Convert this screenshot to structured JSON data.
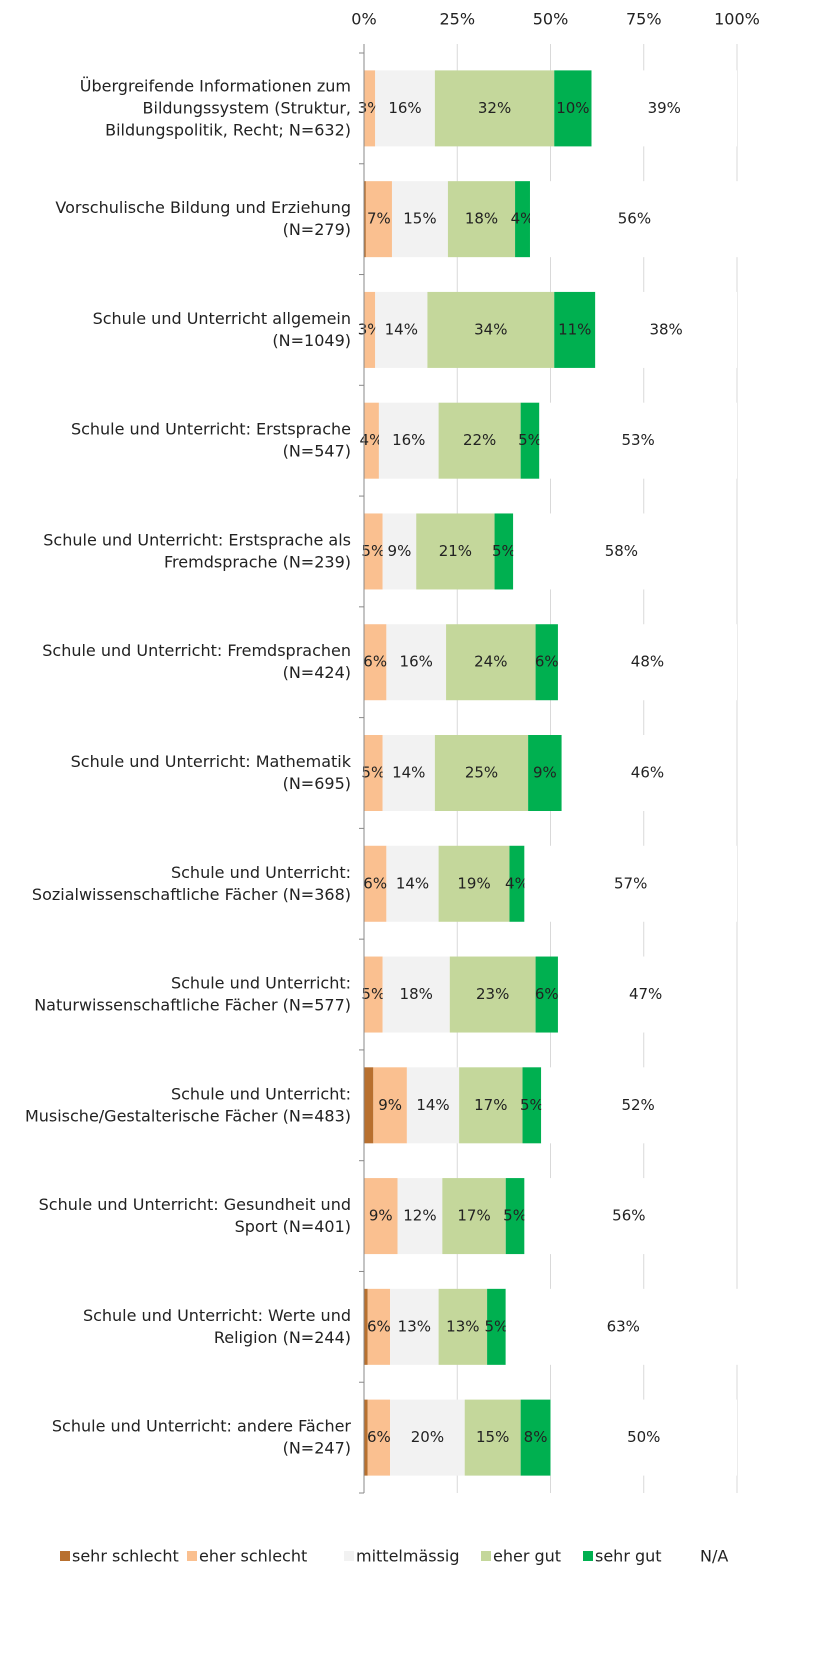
{
  "chart_data": {
    "type": "stacked-bar-horizontal",
    "categories": [
      [
        "Übergreifende Informationen zum",
        "Bildungssystem (Struktur,",
        "Bildungspolitik, Recht; N=632)"
      ],
      [
        "Vorschulische Bildung und Erziehung",
        "(N=279)"
      ],
      [
        "Schule und Unterricht allgemein",
        "(N=1049)"
      ],
      [
        "Schule und Unterricht: Erstsprache",
        "(N=547)"
      ],
      [
        "Schule und Unterricht: Erstsprache als",
        "Fremdsprache (N=239)"
      ],
      [
        "Schule und Unterricht: Fremdsprachen",
        "(N=424)"
      ],
      [
        "Schule und Unterricht: Mathematik",
        "(N=695)"
      ],
      [
        "Schule und Unterricht:",
        "Sozialwissenschaftliche Fächer (N=368)"
      ],
      [
        "Schule und Unterricht:",
        "Naturwissenschaftliche Fächer (N=577)"
      ],
      [
        "Schule und Unterricht:",
        "Musische/Gestalterische Fächer (N=483)"
      ],
      [
        "Schule und Unterricht: Gesundheit und",
        "Sport (N=401)"
      ],
      [
        "Schule und Unterricht: Werte und",
        "Religion (N=244)"
      ],
      [
        "Schule und Unterricht: andere Fächer",
        "(N=247)"
      ]
    ],
    "series": [
      {
        "name": "sehr schlecht",
        "color": "#b8702f",
        "values": [
          0,
          0.5,
          0,
          0,
          0,
          0,
          0,
          0,
          0,
          2.5,
          0,
          1,
          1
        ]
      },
      {
        "name": "eher schlecht",
        "color": "#fac090",
        "label_color": "#e8832a",
        "values": [
          3,
          7,
          3,
          4,
          5,
          6,
          5,
          6,
          5,
          9,
          9,
          6,
          6
        ],
        "value_labels": [
          "3%",
          "7%",
          "3%",
          "4%",
          "5%",
          "6%",
          "5%",
          "6%",
          "5%",
          "9%",
          "9%",
          "6%",
          "6%"
        ]
      },
      {
        "name": "mittelmässig",
        "color": "#f2f2f2",
        "label_color": "#c8c8c8",
        "values": [
          16,
          15,
          14,
          16,
          9,
          16,
          14,
          14,
          18,
          14,
          12,
          13,
          20
        ],
        "value_labels": [
          "16%",
          "15%",
          "14%",
          "16%",
          "9%",
          "16%",
          "14%",
          "14%",
          "18%",
          "14%",
          "12%",
          "13%",
          "20%"
        ]
      },
      {
        "name": "eher gut",
        "color": "#c4d79b",
        "label_color": "#86a34a",
        "values": [
          32,
          18,
          34,
          22,
          21,
          24,
          25,
          19,
          23,
          17,
          17,
          13,
          15
        ],
        "value_labels": [
          "32%",
          "18%",
          "34%",
          "22%",
          "21%",
          "24%",
          "25%",
          "19%",
          "23%",
          "17%",
          "17%",
          "13%",
          "15%"
        ]
      },
      {
        "name": "sehr gut",
        "color": "#00b050",
        "label_color": "#000000",
        "values": [
          10,
          4,
          11,
          5,
          5,
          6,
          9,
          4,
          6,
          5,
          5,
          5,
          8
        ],
        "value_labels": [
          "10%",
          "4%",
          "11%",
          "5%",
          "5%",
          "6%",
          "9%",
          "4%",
          "6%",
          "5%",
          "5%",
          "5%",
          "8%"
        ]
      },
      {
        "name": "N/A",
        "color": "#ffffff",
        "label_color": "#000000",
        "values": [
          39,
          56,
          38,
          53,
          58,
          48,
          46,
          57,
          47,
          52,
          56,
          63,
          50
        ],
        "value_labels": [
          "39%",
          "56%",
          "38%",
          "53%",
          "58%",
          "48%",
          "46%",
          "57%",
          "47%",
          "52%",
          "56%",
          "63%",
          "50%"
        ]
      }
    ],
    "xlim": [
      0,
      100
    ],
    "xticks": [
      {
        "value": 0,
        "label": "0%"
      },
      {
        "value": 25,
        "label": "25%"
      },
      {
        "value": 50,
        "label": "50%"
      },
      {
        "value": 75,
        "label": "75%"
      },
      {
        "value": 100,
        "label": "100%"
      }
    ],
    "grid": true,
    "legend": "bottom"
  }
}
